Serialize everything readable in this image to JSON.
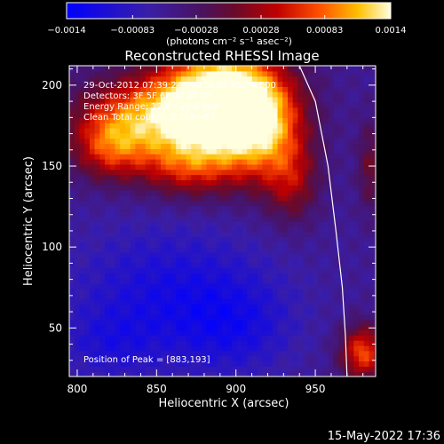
{
  "chart_data": {
    "type": "heatmap",
    "title": "Reconstructed RHESSI Image",
    "xlabel": "Heliocentric X (arcsec)",
    "ylabel": "Heliocentric Y (arcsec)",
    "xlim": [
      795,
      988
    ],
    "ylim": [
      20,
      212
    ],
    "xticks": [
      800,
      850,
      900,
      950
    ],
    "yticks": [
      50,
      100,
      150,
      200
    ],
    "colorbar": {
      "ticks": [
        -0.0014,
        -0.00083,
        -0.00028,
        0.00028,
        0.00083,
        0.0014
      ],
      "tick_labels": [
        "−0.0014",
        "−0.00083",
        "−0.00028",
        "0.00028",
        "0.00083",
        "0.0014"
      ],
      "range": [
        -0.0014,
        0.0014
      ],
      "unit_label": "(photons cm⁻² s⁻¹ asec⁻²)"
    },
    "annotations": [
      "29-Oct-2012 07:39:24.000 to 07:45:28.000",
      "Detectors: 3F 5F 6F 7F 8F 9F",
      "Energy Range: 12.0 - 25.0 keV",
      "Clean    Total counts: 2.10E+03"
    ],
    "peak_label": "Position of Peak = [883,193]",
    "peak": [
      883,
      193
    ],
    "limb": [
      [
        940,
        212
      ],
      [
        950,
        190
      ],
      [
        958,
        150
      ],
      [
        963,
        110
      ],
      [
        967,
        75
      ],
      [
        969,
        45
      ],
      [
        970,
        20
      ]
    ],
    "hotspots": [
      {
        "x": 888,
        "y": 192,
        "sx": 26,
        "sy": 22,
        "w": 1.8
      },
      {
        "x": 840,
        "y": 180,
        "sx": 30,
        "sy": 18,
        "w": 1.1
      },
      {
        "x": 915,
        "y": 175,
        "sx": 20,
        "sy": 24,
        "w": 1.2
      },
      {
        "x": 870,
        "y": 150,
        "sx": 22,
        "sy": 14,
        "w": 0.8
      },
      {
        "x": 820,
        "y": 160,
        "sx": 16,
        "sy": 14,
        "w": 0.7
      },
      {
        "x": 935,
        "y": 140,
        "sx": 12,
        "sy": 18,
        "w": 0.6
      },
      {
        "x": 980,
        "y": 35,
        "sx": 10,
        "sy": 12,
        "w": 1.1
      },
      {
        "x": 985,
        "y": 150,
        "sx": 6,
        "sy": 20,
        "w": 0.5
      }
    ],
    "coldspots": [
      {
        "x": 860,
        "y": 70,
        "sx": 45,
        "sy": 30,
        "w": 0.9
      },
      {
        "x": 820,
        "y": 40,
        "sx": 20,
        "sy": 15,
        "w": 0.5
      },
      {
        "x": 900,
        "y": 50,
        "sx": 25,
        "sy": 20,
        "w": 0.6
      }
    ]
  },
  "footer": {
    "timestamp": "15-May-2022 17:36"
  }
}
